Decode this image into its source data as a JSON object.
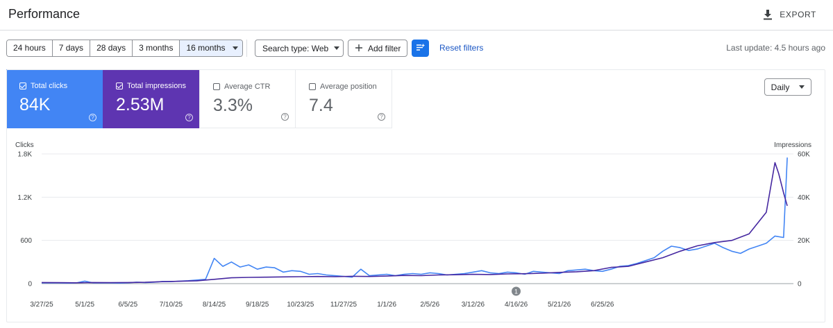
{
  "header": {
    "title": "Performance",
    "export_label": "EXPORT"
  },
  "toolbar": {
    "ranges": [
      "24 hours",
      "7 days",
      "28 days",
      "3 months",
      "16 months"
    ],
    "active_range": "16 months",
    "search_type": "Search type: Web",
    "add_filter": "Add filter",
    "reset_filters": "Reset filters",
    "last_update": "Last update: 4.5 hours ago"
  },
  "metrics": [
    {
      "label": "Total clicks",
      "value": "84K",
      "checked": true,
      "color": "#4285f4"
    },
    {
      "label": "Total impressions",
      "value": "2.53M",
      "checked": true,
      "color": "#5e35b1"
    },
    {
      "label": "Average CTR",
      "value": "3.3%",
      "checked": false
    },
    {
      "label": "Average position",
      "value": "7.4",
      "checked": false
    }
  ],
  "granularity": "Daily",
  "chart_data": {
    "type": "line",
    "x": [
      "3/27/25",
      "5/1/25",
      "6/5/25",
      "7/10/25",
      "8/14/25",
      "9/18/25",
      "10/23/25",
      "11/27/25",
      "1/1/26",
      "2/5/26",
      "3/12/26",
      "4/16/26",
      "5/21/26",
      "6/25/26"
    ],
    "xlabel": "",
    "ylabel_left": "Clicks",
    "ylabel_right": "Impressions",
    "left_ticks": [
      "0",
      "600",
      "1.2K",
      "1.8K"
    ],
    "right_ticks": [
      "0",
      "20K",
      "40K",
      "60K"
    ],
    "ylim_left": [
      0,
      1800
    ],
    "ylim_right": [
      0,
      60000
    ],
    "annotation": {
      "label": "1",
      "date": "4/16/26"
    },
    "series": [
      {
        "name": "Clicks",
        "axis": "left",
        "color": "#4285f4",
        "points": [
          [
            0,
            10
          ],
          [
            7,
            12
          ],
          [
            14,
            10
          ],
          [
            21,
            8
          ],
          [
            28,
            10
          ],
          [
            35,
            35
          ],
          [
            42,
            10
          ],
          [
            49,
            12
          ],
          [
            56,
            10
          ],
          [
            63,
            8
          ],
          [
            70,
            12
          ],
          [
            77,
            20
          ],
          [
            84,
            15
          ],
          [
            91,
            20
          ],
          [
            98,
            30
          ],
          [
            105,
            28
          ],
          [
            112,
            35
          ],
          [
            119,
            40
          ],
          [
            126,
            50
          ],
          [
            133,
            60
          ],
          [
            140,
            350
          ],
          [
            147,
            240
          ],
          [
            154,
            300
          ],
          [
            161,
            230
          ],
          [
            168,
            260
          ],
          [
            175,
            200
          ],
          [
            182,
            230
          ],
          [
            189,
            220
          ],
          [
            196,
            160
          ],
          [
            203,
            180
          ],
          [
            210,
            170
          ],
          [
            217,
            130
          ],
          [
            224,
            140
          ],
          [
            231,
            120
          ],
          [
            238,
            110
          ],
          [
            245,
            100
          ],
          [
            252,
            90
          ],
          [
            259,
            200
          ],
          [
            266,
            110
          ],
          [
            273,
            120
          ],
          [
            280,
            130
          ],
          [
            287,
            110
          ],
          [
            294,
            130
          ],
          [
            301,
            140
          ],
          [
            308,
            130
          ],
          [
            315,
            150
          ],
          [
            322,
            140
          ],
          [
            329,
            120
          ],
          [
            336,
            130
          ],
          [
            343,
            140
          ],
          [
            350,
            160
          ],
          [
            357,
            180
          ],
          [
            364,
            150
          ],
          [
            371,
            140
          ],
          [
            378,
            160
          ],
          [
            385,
            150
          ],
          [
            392,
            130
          ],
          [
            399,
            170
          ],
          [
            406,
            160
          ],
          [
            413,
            150
          ],
          [
            420,
            140
          ],
          [
            427,
            180
          ],
          [
            434,
            190
          ],
          [
            441,
            200
          ],
          [
            448,
            180
          ],
          [
            455,
            170
          ],
          [
            462,
            200
          ],
          [
            469,
            240
          ],
          [
            476,
            250
          ],
          [
            483,
            280
          ],
          [
            490,
            320
          ],
          [
            497,
            360
          ],
          [
            504,
            450
          ],
          [
            511,
            520
          ],
          [
            518,
            500
          ],
          [
            525,
            460
          ],
          [
            532,
            480
          ],
          [
            539,
            520
          ],
          [
            546,
            560
          ],
          [
            553,
            500
          ],
          [
            560,
            450
          ],
          [
            567,
            420
          ],
          [
            574,
            480
          ],
          [
            581,
            520
          ],
          [
            588,
            560
          ],
          [
            595,
            660
          ],
          [
            602,
            640
          ],
          [
            605,
            1750
          ]
        ]
      },
      {
        "name": "Impressions",
        "axis": "right",
        "color": "#4527a0",
        "points": [
          [
            0,
            500
          ],
          [
            14,
            450
          ],
          [
            28,
            400
          ],
          [
            42,
            500
          ],
          [
            56,
            450
          ],
          [
            70,
            500
          ],
          [
            84,
            600
          ],
          [
            98,
            900
          ],
          [
            112,
            1100
          ],
          [
            126,
            1300
          ],
          [
            140,
            2000
          ],
          [
            154,
            2700
          ],
          [
            168,
            2900
          ],
          [
            182,
            3000
          ],
          [
            196,
            3100
          ],
          [
            210,
            3200
          ],
          [
            224,
            3300
          ],
          [
            238,
            3200
          ],
          [
            252,
            3400
          ],
          [
            266,
            3300
          ],
          [
            280,
            3500
          ],
          [
            294,
            3800
          ],
          [
            308,
            3700
          ],
          [
            322,
            4000
          ],
          [
            336,
            4100
          ],
          [
            350,
            4300
          ],
          [
            364,
            4200
          ],
          [
            378,
            4500
          ],
          [
            392,
            4600
          ],
          [
            406,
            4800
          ],
          [
            420,
            5200
          ],
          [
            434,
            5500
          ],
          [
            448,
            6000
          ],
          [
            462,
            7500
          ],
          [
            476,
            8000
          ],
          [
            490,
            10000
          ],
          [
            504,
            12000
          ],
          [
            518,
            15000
          ],
          [
            532,
            17500
          ],
          [
            546,
            19000
          ],
          [
            560,
            20000
          ],
          [
            574,
            23000
          ],
          [
            588,
            33000
          ],
          [
            595,
            56000
          ],
          [
            598,
            51000
          ],
          [
            602,
            42000
          ],
          [
            605,
            36000
          ]
        ]
      }
    ]
  }
}
